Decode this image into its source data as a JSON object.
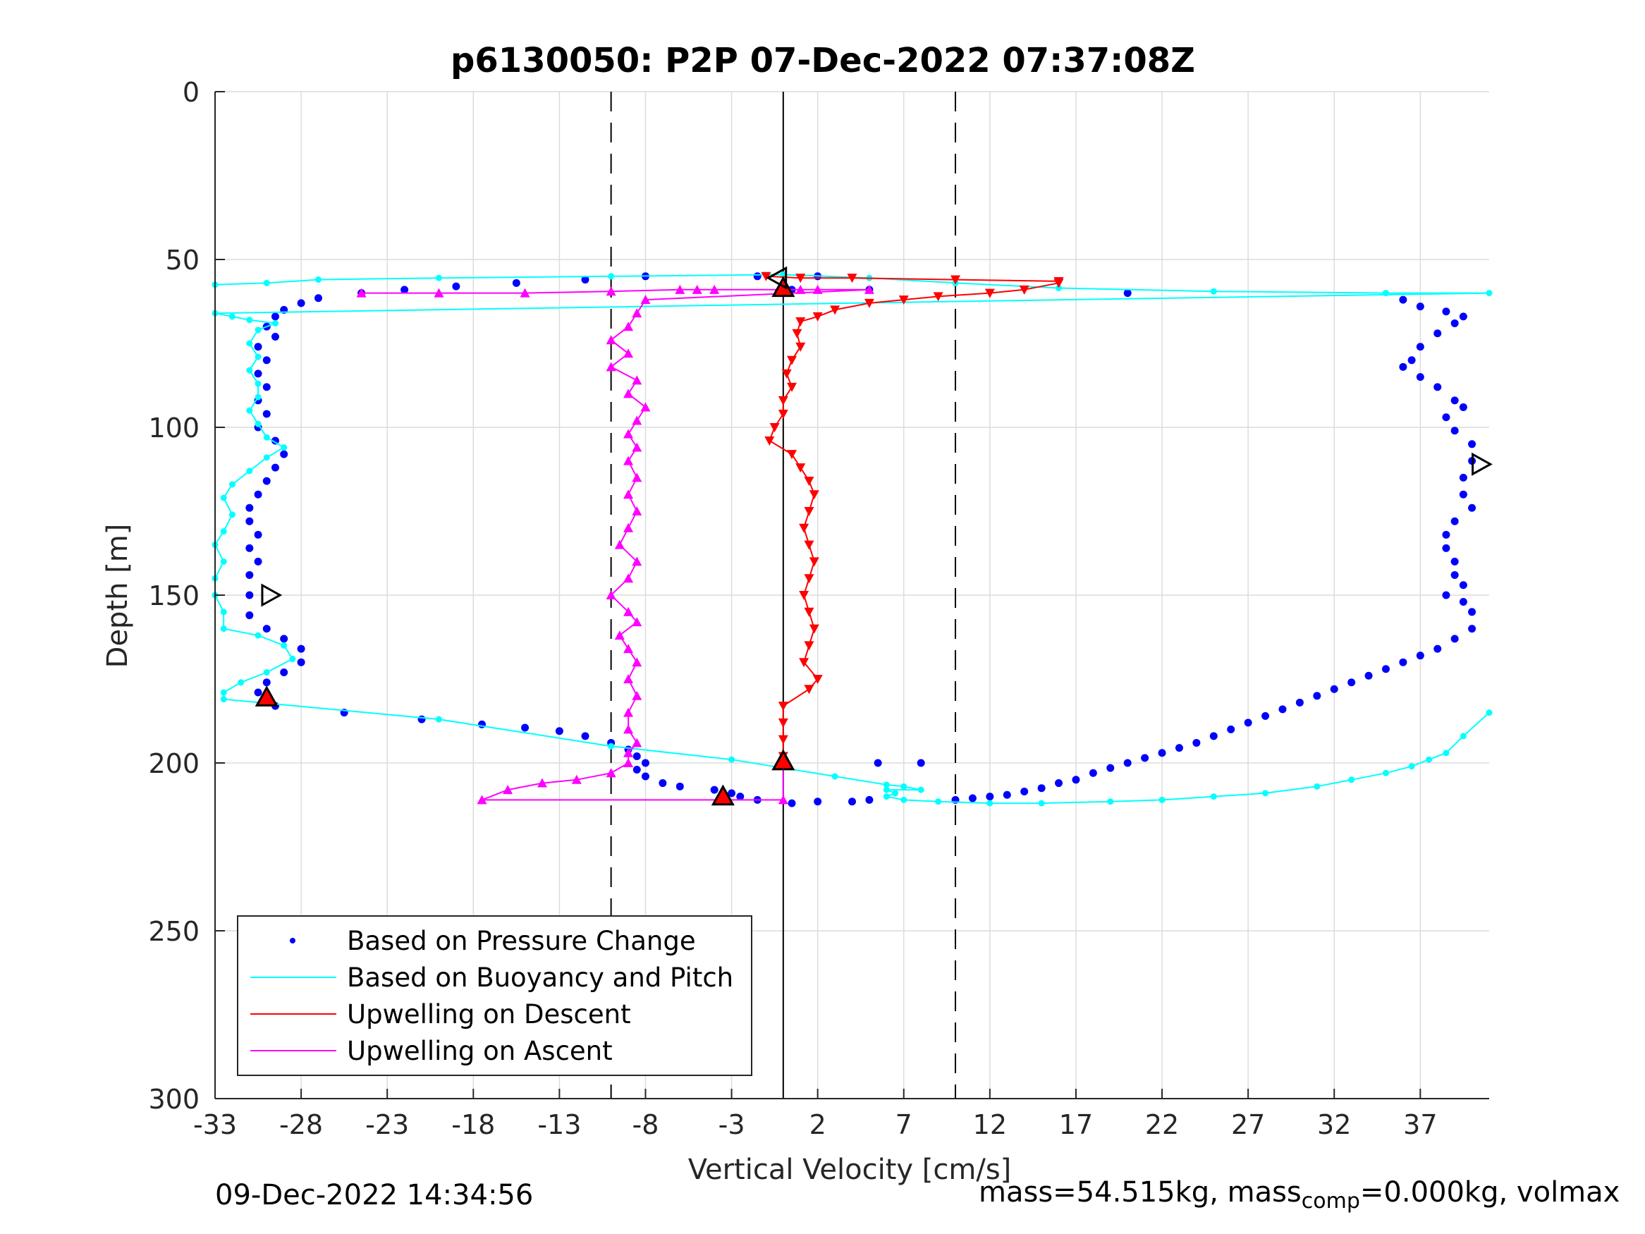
{
  "chart_data": {
    "type": "scatter",
    "title": "p6130050: P2P 07-Dec-2022 07:37:08Z",
    "xlabel": "Vertical Velocity [cm/s]",
    "ylabel": "Depth [m]",
    "xlim": [
      -33,
      41
    ],
    "ylim": [
      0,
      300
    ],
    "y_reversed": true,
    "grid": true,
    "xticks": [
      -33,
      -28,
      -23,
      -18,
      -13,
      -8,
      -3,
      2,
      7,
      12,
      17,
      22,
      27,
      32,
      37
    ],
    "yticks": [
      0,
      50,
      100,
      150,
      200,
      250,
      300
    ],
    "reference_lines": [
      {
        "x": -10,
        "style": "dashed"
      },
      {
        "x": 0,
        "style": "solid"
      },
      {
        "x": 10,
        "style": "dashed"
      }
    ],
    "legend": {
      "placement": "bottom-left",
      "entries": [
        {
          "label": "Based on Pressure Change",
          "color": "#0000ff",
          "marker": "dot"
        },
        {
          "label": "Based on Buoyancy and Pitch",
          "color": "#00ffff",
          "marker": "line"
        },
        {
          "label": "Upwelling on Descent",
          "color": "#ff0000",
          "marker": "line"
        },
        {
          "label": "Upwelling on Ascent",
          "color": "#ff00ff",
          "marker": "line"
        }
      ]
    },
    "series": [
      {
        "name": "Based on Pressure Change",
        "color": "#0000ff",
        "style": "dots",
        "points": [
          [
            2,
            55
          ],
          [
            -1.5,
            55
          ],
          [
            -8,
            55
          ],
          [
            -11.5,
            56
          ],
          [
            -15.5,
            57
          ],
          [
            -19,
            58
          ],
          [
            -22,
            59
          ],
          [
            -24.5,
            60
          ],
          [
            0.5,
            59
          ],
          [
            5,
            59
          ],
          [
            20,
            60
          ],
          [
            -27,
            61.5
          ],
          [
            -28,
            63
          ],
          [
            -29,
            65
          ],
          [
            -29.5,
            67
          ],
          [
            -30,
            70
          ],
          [
            -29.5,
            73
          ],
          [
            -30.5,
            76
          ],
          [
            -30,
            80
          ],
          [
            -30.5,
            84
          ],
          [
            -30,
            88
          ],
          [
            -30.5,
            92
          ],
          [
            -30,
            96
          ],
          [
            -30.5,
            100
          ],
          [
            -29.5,
            104
          ],
          [
            -29,
            108
          ],
          [
            -29.5,
            112
          ],
          [
            -30,
            116
          ],
          [
            -30.5,
            120
          ],
          [
            -31,
            124
          ],
          [
            -31,
            128
          ],
          [
            -30.5,
            132
          ],
          [
            -31,
            136
          ],
          [
            -30.5,
            140
          ],
          [
            -31,
            144
          ],
          [
            -31,
            150
          ],
          [
            -31,
            156
          ],
          [
            -30,
            160
          ],
          [
            -29,
            163
          ],
          [
            -28,
            166
          ],
          [
            -28,
            170
          ],
          [
            -29,
            173
          ],
          [
            -30,
            176
          ],
          [
            -30.5,
            179
          ],
          [
            -29.5,
            183
          ],
          [
            -25.5,
            185
          ],
          [
            -21,
            187
          ],
          [
            -17.5,
            188.5
          ],
          [
            -15,
            189.5
          ],
          [
            -13,
            190.5
          ],
          [
            -11.5,
            192
          ],
          [
            -10,
            194
          ],
          [
            -9,
            196
          ],
          [
            -8.5,
            198
          ],
          [
            -8,
            200
          ],
          [
            -8.5,
            202
          ],
          [
            -8,
            204
          ],
          [
            -7,
            206
          ],
          [
            -6,
            207
          ],
          [
            -4,
            208
          ],
          [
            -3,
            209
          ],
          [
            -2.5,
            210
          ],
          [
            -1.5,
            211
          ],
          [
            0.5,
            212
          ],
          [
            2,
            211.5
          ],
          [
            4,
            211.5
          ],
          [
            5,
            211
          ],
          [
            5.5,
            200
          ],
          [
            8,
            200
          ],
          [
            36,
            62
          ],
          [
            37,
            64
          ],
          [
            38.5,
            65.5
          ],
          [
            39.5,
            67
          ],
          [
            39,
            69
          ],
          [
            38,
            72
          ],
          [
            37,
            76
          ],
          [
            36.5,
            80
          ],
          [
            36,
            82
          ],
          [
            37,
            85
          ],
          [
            38,
            88
          ],
          [
            39,
            92
          ],
          [
            39.5,
            94
          ],
          [
            38.5,
            97
          ],
          [
            39,
            101
          ],
          [
            40,
            105
          ],
          [
            40,
            110
          ],
          [
            39.5,
            115
          ],
          [
            39.5,
            120
          ],
          [
            40,
            124
          ],
          [
            39,
            128
          ],
          [
            38.5,
            132
          ],
          [
            38.5,
            136
          ],
          [
            39,
            140
          ],
          [
            39,
            144
          ],
          [
            39.5,
            147
          ],
          [
            38.5,
            150
          ],
          [
            39.5,
            152
          ],
          [
            40,
            155
          ],
          [
            40,
            160
          ],
          [
            39,
            163
          ],
          [
            38,
            166
          ],
          [
            37,
            168
          ],
          [
            36,
            170
          ],
          [
            35,
            172
          ],
          [
            34,
            174
          ],
          [
            33,
            176
          ],
          [
            32,
            178
          ],
          [
            31,
            180
          ],
          [
            30,
            182
          ],
          [
            29,
            184
          ],
          [
            28,
            186
          ],
          [
            27,
            188
          ],
          [
            26,
            190
          ],
          [
            25,
            192
          ],
          [
            24,
            194
          ],
          [
            23,
            195.5
          ],
          [
            22,
            197
          ],
          [
            21,
            198.5
          ],
          [
            20,
            200
          ],
          [
            19,
            201.5
          ],
          [
            18,
            203
          ],
          [
            17,
            205
          ],
          [
            16,
            206
          ],
          [
            15,
            207.5
          ],
          [
            14,
            208.5
          ],
          [
            13,
            209.5
          ],
          [
            12,
            210
          ],
          [
            11,
            210.5
          ],
          [
            10,
            211
          ]
        ]
      },
      {
        "name": "Based on Buoyancy and Pitch",
        "color": "#00ffff",
        "style": "line-markers",
        "points": [
          [
            -33,
            57.5
          ],
          [
            -30,
            57
          ],
          [
            -27,
            56
          ],
          [
            -20,
            55.5
          ],
          [
            -10,
            55
          ],
          [
            0,
            54.5
          ],
          [
            5,
            55.5
          ],
          [
            10,
            57
          ],
          [
            16,
            58.5
          ],
          [
            25,
            59.5
          ],
          [
            35,
            60
          ],
          [
            41,
            60
          ],
          [
            -33,
            66
          ],
          [
            -32,
            67
          ],
          [
            -31,
            68
          ],
          [
            -29.5,
            69
          ],
          [
            -30.5,
            71
          ],
          [
            -31,
            75
          ],
          [
            -30.5,
            79
          ],
          [
            -31,
            83
          ],
          [
            -30.5,
            87
          ],
          [
            -30.5,
            91
          ],
          [
            -31,
            95
          ],
          [
            -30.5,
            99
          ],
          [
            -30,
            103
          ],
          [
            -29,
            106
          ],
          [
            -30,
            109
          ],
          [
            -31,
            113
          ],
          [
            -32,
            117
          ],
          [
            -32.5,
            121
          ],
          [
            -32,
            126
          ],
          [
            -32.5,
            131
          ],
          [
            -33,
            135
          ],
          [
            -32.5,
            140
          ],
          [
            -33,
            145
          ],
          [
            -33,
            150
          ],
          [
            -32.5,
            155
          ],
          [
            -32.5,
            160
          ],
          [
            -30.5,
            162
          ],
          [
            -29,
            165
          ],
          [
            -28.5,
            169
          ],
          [
            -30,
            173
          ],
          [
            -31.5,
            176
          ],
          [
            -32.5,
            179
          ],
          [
            -32.5,
            181
          ],
          [
            -20,
            187
          ],
          [
            -10,
            195
          ],
          [
            -3,
            199
          ],
          [
            3,
            204
          ],
          [
            6,
            206.5
          ],
          [
            7,
            207
          ],
          [
            8,
            208
          ],
          [
            6,
            208
          ],
          [
            6.5,
            209
          ],
          [
            6,
            210
          ],
          [
            7,
            211
          ],
          [
            9,
            211.5
          ],
          [
            12,
            212
          ],
          [
            15,
            212
          ],
          [
            19,
            211.5
          ],
          [
            22,
            211
          ],
          [
            25,
            210
          ],
          [
            28,
            209
          ],
          [
            31,
            207
          ],
          [
            33,
            205
          ],
          [
            35,
            203
          ],
          [
            36.5,
            201
          ],
          [
            37.5,
            199
          ],
          [
            38.5,
            197
          ],
          [
            39.5,
            192
          ],
          [
            41,
            185
          ]
        ]
      },
      {
        "name": "Upwelling on Descent",
        "color": "#ff0000",
        "style": "line-markers",
        "points": [
          [
            -1,
            55
          ],
          [
            1,
            55.5
          ],
          [
            4,
            55.5
          ],
          [
            10,
            56
          ],
          [
            16,
            56.5
          ],
          [
            16,
            57
          ],
          [
            14,
            59
          ],
          [
            12,
            60
          ],
          [
            9,
            61
          ],
          [
            7,
            62
          ],
          [
            5,
            63
          ],
          [
            3,
            65
          ],
          [
            2,
            67
          ],
          [
            1,
            68.5
          ],
          [
            0.8,
            72
          ],
          [
            1,
            76
          ],
          [
            0.5,
            80
          ],
          [
            0.2,
            84
          ],
          [
            0.5,
            88
          ],
          [
            0,
            92
          ],
          [
            0,
            96
          ],
          [
            -0.5,
            100
          ],
          [
            -0.8,
            104
          ],
          [
            0.5,
            108
          ],
          [
            1,
            112
          ],
          [
            1.5,
            116
          ],
          [
            1.8,
            120
          ],
          [
            1.5,
            125
          ],
          [
            1.2,
            130
          ],
          [
            1.5,
            135
          ],
          [
            1.8,
            140
          ],
          [
            1.5,
            145
          ],
          [
            1.2,
            150
          ],
          [
            1.5,
            155
          ],
          [
            1.8,
            160
          ],
          [
            1.5,
            165
          ],
          [
            1.2,
            170
          ],
          [
            2,
            175
          ],
          [
            1.5,
            178
          ],
          [
            0,
            183
          ],
          [
            0,
            188
          ],
          [
            0,
            193
          ],
          [
            0,
            198
          ]
        ]
      },
      {
        "name": "Upwelling on Ascent",
        "color": "#ff00ff",
        "style": "line-markers",
        "points": [
          [
            -24.5,
            60
          ],
          [
            -20,
            60
          ],
          [
            -15,
            60
          ],
          [
            -10,
            59.5
          ],
          [
            -6,
            59
          ],
          [
            -5,
            59
          ],
          [
            -4,
            59
          ],
          [
            1,
            59
          ],
          [
            2,
            59
          ],
          [
            5,
            59
          ],
          [
            -8,
            62
          ],
          [
            -8.5,
            66
          ],
          [
            -9,
            70
          ],
          [
            -10,
            74
          ],
          [
            -9,
            78
          ],
          [
            -10,
            82
          ],
          [
            -8.5,
            86
          ],
          [
            -9,
            90
          ],
          [
            -8,
            94
          ],
          [
            -8.5,
            98
          ],
          [
            -9,
            102
          ],
          [
            -8.5,
            106
          ],
          [
            -9,
            110
          ],
          [
            -8.5,
            115
          ],
          [
            -9,
            120
          ],
          [
            -8.5,
            125
          ],
          [
            -9,
            130
          ],
          [
            -9.5,
            135
          ],
          [
            -8.5,
            140
          ],
          [
            -9,
            145
          ],
          [
            -10,
            150
          ],
          [
            -9,
            155
          ],
          [
            -8.5,
            158
          ],
          [
            -9.5,
            162
          ],
          [
            -9,
            166
          ],
          [
            -8.5,
            170
          ],
          [
            -9,
            175
          ],
          [
            -8.5,
            180
          ],
          [
            -9,
            185
          ],
          [
            -9,
            190
          ],
          [
            -8.5,
            194
          ],
          [
            -9,
            197
          ],
          [
            -9,
            200
          ],
          [
            -10,
            203
          ],
          [
            -12,
            205
          ],
          [
            -14,
            206
          ],
          [
            -16,
            208
          ],
          [
            -17.5,
            211
          ],
          [
            0,
            211
          ],
          [
            0,
            199
          ]
        ]
      }
    ],
    "event_markers": [
      {
        "shape": "triangle-up",
        "fill": "#ff0000",
        "x": 0,
        "y": 58.5
      },
      {
        "shape": "triangle-up",
        "fill": "#ff0000",
        "x": 0,
        "y": 199.5
      },
      {
        "shape": "triangle-up",
        "fill": "#ff0000",
        "x": -3.5,
        "y": 210
      },
      {
        "shape": "triangle-up",
        "fill": "#ff0000",
        "x": -30,
        "y": 180.5
      },
      {
        "shape": "triangle-left",
        "fill": "none",
        "x": -0.3,
        "y": 55.5
      },
      {
        "shape": "triangle-right",
        "fill": "none",
        "x": 40.5,
        "y": 111
      },
      {
        "shape": "triangle-right",
        "fill": "none",
        "x": -29.8,
        "y": 150
      }
    ]
  },
  "footer": {
    "timestamp": "09-Dec-2022 14:34:56",
    "mass_text": "mass=54.515kg, mass",
    "mass_sub": "comp",
    "mass_rest": "=0.000kg, volmax"
  }
}
